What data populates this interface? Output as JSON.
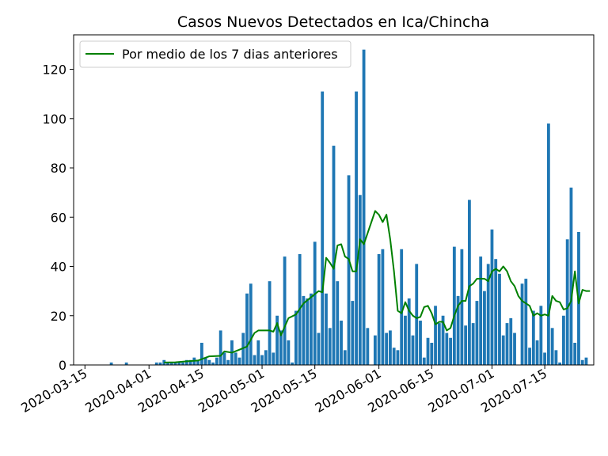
{
  "chart_data": {
    "type": "bar",
    "title": "Casos Nuevos Detectados en Ica/Chincha",
    "xlabel": "",
    "ylabel": "",
    "x_start": "2020-03-12",
    "x_end": "2020-07-28",
    "ylim": [
      0,
      134
    ],
    "y_ticks": [
      0,
      20,
      40,
      60,
      80,
      100,
      120
    ],
    "x_ticks": [
      "2020-03-15",
      "2020-04-01",
      "2020-04-15",
      "2020-05-01",
      "2020-05-15",
      "2020-06-01",
      "2020-06-15",
      "2020-07-01",
      "2020-07-15"
    ],
    "grid": false,
    "legend_position": "top-left",
    "bar_color": "#1f77b4",
    "line_color": "#008000",
    "series": [
      {
        "kind": "bar",
        "dates": [
          "2020-03-22",
          "2020-03-26",
          "2020-04-03",
          "2020-04-04",
          "2020-04-05",
          "2020-04-06",
          "2020-04-07",
          "2020-04-08",
          "2020-04-09",
          "2020-04-10",
          "2020-04-11",
          "2020-04-12",
          "2020-04-13",
          "2020-04-14",
          "2020-04-15",
          "2020-04-16",
          "2020-04-17",
          "2020-04-18",
          "2020-04-19",
          "2020-04-20",
          "2020-04-21",
          "2020-04-22",
          "2020-04-23",
          "2020-04-24",
          "2020-04-25",
          "2020-04-26",
          "2020-04-27",
          "2020-04-28",
          "2020-04-29",
          "2020-04-30",
          "2020-05-01",
          "2020-05-02",
          "2020-05-03",
          "2020-05-04",
          "2020-05-05",
          "2020-05-06",
          "2020-05-07",
          "2020-05-08",
          "2020-05-09",
          "2020-05-10",
          "2020-05-11",
          "2020-05-12",
          "2020-05-13",
          "2020-05-14",
          "2020-05-15",
          "2020-05-16",
          "2020-05-17",
          "2020-05-18",
          "2020-05-19",
          "2020-05-20",
          "2020-05-21",
          "2020-05-22",
          "2020-05-23",
          "2020-05-24",
          "2020-05-25",
          "2020-05-26",
          "2020-05-27",
          "2020-05-28",
          "2020-05-29",
          "2020-05-30",
          "2020-05-31",
          "2020-06-01",
          "2020-06-02",
          "2020-06-03",
          "2020-06-04",
          "2020-06-05",
          "2020-06-06",
          "2020-06-07",
          "2020-06-08",
          "2020-06-09",
          "2020-06-10",
          "2020-06-11",
          "2020-06-12",
          "2020-06-13",
          "2020-06-14",
          "2020-06-15",
          "2020-06-16",
          "2020-06-17",
          "2020-06-18",
          "2020-06-19",
          "2020-06-20",
          "2020-06-21",
          "2020-06-22",
          "2020-06-23",
          "2020-06-24",
          "2020-06-25",
          "2020-06-26",
          "2020-06-27",
          "2020-06-28",
          "2020-06-29",
          "2020-06-30",
          "2020-07-01",
          "2020-07-02",
          "2020-07-03",
          "2020-07-04",
          "2020-07-05",
          "2020-07-06",
          "2020-07-07",
          "2020-07-08",
          "2020-07-09",
          "2020-07-10",
          "2020-07-11",
          "2020-07-12",
          "2020-07-13",
          "2020-07-14",
          "2020-07-15",
          "2020-07-16",
          "2020-07-17",
          "2020-07-18",
          "2020-07-19",
          "2020-07-20",
          "2020-07-21",
          "2020-07-22",
          "2020-07-23",
          "2020-07-24",
          "2020-07-25",
          "2020-07-26",
          "2020-07-27"
        ],
        "values": [
          1,
          1,
          1,
          1,
          2,
          1,
          1,
          1,
          1,
          1,
          2,
          2,
          3,
          2,
          9,
          3,
          2,
          1,
          3,
          14,
          5,
          2,
          10,
          5,
          3,
          13,
          29,
          33,
          4,
          10,
          4,
          6,
          34,
          5,
          20,
          14,
          44,
          10,
          1,
          22,
          45,
          28,
          27,
          29,
          50,
          13,
          111,
          29,
          15,
          89,
          34,
          18,
          6,
          77,
          26,
          111,
          69,
          128,
          15,
          0,
          12,
          45,
          47,
          13,
          14,
          7,
          6,
          47,
          20,
          27,
          12,
          41,
          18,
          3,
          11,
          9,
          24,
          17,
          20,
          13,
          11,
          48,
          28,
          47,
          16,
          67,
          17,
          26,
          44,
          30,
          41,
          55,
          43,
          37,
          12,
          17,
          19,
          13,
          0,
          33,
          35,
          7,
          22,
          10,
          24,
          5,
          98,
          15,
          6,
          1,
          20,
          51,
          72,
          9,
          54,
          2,
          3,
          0
        ]
      },
      {
        "kind": "line",
        "name": "Por medio de los 7 dias anteriores",
        "dates": [
          "2020-04-05",
          "2020-04-08",
          "2020-04-11",
          "2020-04-14",
          "2020-04-17",
          "2020-04-20",
          "2020-04-21",
          "2020-04-23",
          "2020-04-25",
          "2020-04-27",
          "2020-04-29",
          "2020-04-30",
          "2020-05-02",
          "2020-05-03",
          "2020-05-04",
          "2020-05-05",
          "2020-05-06",
          "2020-05-08",
          "2020-05-10",
          "2020-05-12",
          "2020-05-14",
          "2020-05-16",
          "2020-05-17",
          "2020-05-18",
          "2020-05-19",
          "2020-05-20",
          "2020-05-21",
          "2020-05-22",
          "2020-05-23",
          "2020-05-24",
          "2020-05-25",
          "2020-05-26",
          "2020-05-27",
          "2020-05-28",
          "2020-05-31",
          "2020-06-01",
          "2020-06-02",
          "2020-06-03",
          "2020-06-04",
          "2020-06-05",
          "2020-06-06",
          "2020-06-07",
          "2020-06-08",
          "2020-06-09",
          "2020-06-10",
          "2020-06-11",
          "2020-06-12",
          "2020-06-13",
          "2020-06-14",
          "2020-06-15",
          "2020-06-16",
          "2020-06-17",
          "2020-06-18",
          "2020-06-19",
          "2020-06-20",
          "2020-06-21",
          "2020-06-22",
          "2020-06-23",
          "2020-06-24",
          "2020-06-25",
          "2020-06-26",
          "2020-06-27",
          "2020-06-28",
          "2020-06-29",
          "2020-06-30",
          "2020-07-01",
          "2020-07-02",
          "2020-07-03",
          "2020-07-04",
          "2020-07-05",
          "2020-07-06",
          "2020-07-07",
          "2020-07-08",
          "2020-07-09",
          "2020-07-10",
          "2020-07-11",
          "2020-07-12",
          "2020-07-13",
          "2020-07-14",
          "2020-07-15",
          "2020-07-16",
          "2020-07-17",
          "2020-07-18",
          "2020-07-19",
          "2020-07-20",
          "2020-07-21",
          "2020-07-22",
          "2020-07-23",
          "2020-07-24",
          "2020-07-25",
          "2020-07-26",
          "2020-07-27"
        ],
        "values": [
          1,
          1.1,
          1.5,
          1.8,
          3.5,
          3.7,
          5.5,
          5,
          6.2,
          7.5,
          13,
          14,
          14,
          14,
          13.5,
          17,
          12,
          19,
          20.5,
          25,
          27.5,
          30,
          29.5,
          43.5,
          41.5,
          39,
          48.5,
          49,
          44,
          43,
          38,
          38,
          51,
          49,
          62.5,
          61,
          58,
          61,
          51,
          38,
          22,
          21,
          25.5,
          22,
          20,
          19,
          19.5,
          23.5,
          24,
          21,
          16.5,
          17.5,
          17.5,
          14,
          15,
          20,
          24,
          26,
          26,
          32,
          33,
          35,
          35,
          35,
          34,
          38,
          39,
          38,
          40,
          38,
          34,
          32,
          28,
          26,
          25,
          24,
          20,
          21,
          20,
          20.5,
          20,
          28,
          26,
          25.5,
          22.5,
          23,
          26,
          38,
          25,
          30.5,
          30,
          30
        ]
      }
    ]
  }
}
